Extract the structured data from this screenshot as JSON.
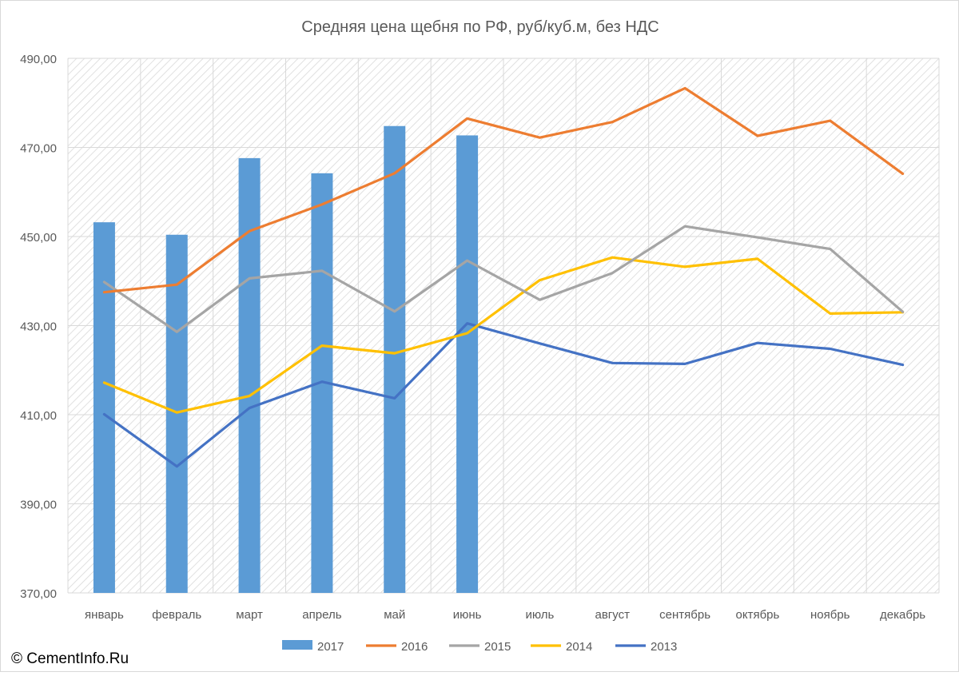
{
  "footer": {
    "copyright": "© CementInfo.Ru"
  },
  "chart_data": {
    "type": "bar",
    "title": "Средняя цена щебня по РФ, руб/куб.м, без НДС",
    "xlabel": "",
    "ylabel": "",
    "ylim": [
      370,
      490
    ],
    "yticks": [
      "370,00",
      "390,00",
      "410,00",
      "430,00",
      "450,00",
      "470,00",
      "490,00"
    ],
    "grid": true,
    "legend_position": "bottom",
    "categories": [
      "январь",
      "февраль",
      "март",
      "апрель",
      "май",
      "июнь",
      "июль",
      "август",
      "сентябрь",
      "октябрь",
      "ноябрь",
      "декабрь"
    ],
    "series": [
      {
        "name": "2017",
        "kind": "bar",
        "color": "#5b9bd5",
        "values": [
          453.2,
          450.4,
          467.6,
          464.2,
          474.8,
          472.7,
          null,
          null,
          null,
          null,
          null,
          null
        ]
      },
      {
        "name": "2016",
        "kind": "line",
        "color": "#ed7d31",
        "values": [
          437.5,
          439.2,
          451.2,
          457.2,
          464.2,
          476.5,
          472.2,
          475.7,
          483.3,
          472.6,
          476.0,
          464.1
        ]
      },
      {
        "name": "2015",
        "kind": "line",
        "color": "#a5a5a5",
        "values": [
          439.8,
          428.6,
          440.6,
          442.3,
          433.2,
          444.6,
          435.8,
          441.8,
          452.3,
          449.8,
          447.2,
          433.1
        ]
      },
      {
        "name": "2014",
        "kind": "line",
        "color": "#ffc000",
        "values": [
          417.2,
          410.5,
          414.2,
          425.5,
          423.8,
          428.3,
          440.2,
          445.3,
          443.2,
          445.0,
          432.7,
          433.0
        ]
      },
      {
        "name": "2013",
        "kind": "line",
        "color": "#4472c4",
        "values": [
          410.1,
          398.4,
          411.5,
          417.4,
          413.7,
          430.5,
          426.0,
          421.6,
          421.4,
          426.1,
          424.8,
          421.2
        ]
      }
    ]
  }
}
